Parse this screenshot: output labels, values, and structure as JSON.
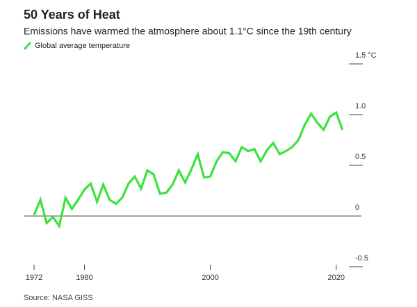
{
  "chart_data": {
    "type": "line",
    "title": "50 Years of Heat",
    "subtitle": "Emissions have warmed the atmosphere about 1.1°C since the 19th century",
    "source": "Source: NASA GISS",
    "x": [
      1972,
      1973,
      1974,
      1975,
      1976,
      1977,
      1978,
      1979,
      1980,
      1981,
      1982,
      1983,
      1984,
      1985,
      1986,
      1987,
      1988,
      1989,
      1990,
      1991,
      1992,
      1993,
      1994,
      1995,
      1996,
      1997,
      1998,
      1999,
      2000,
      2001,
      2002,
      2003,
      2004,
      2005,
      2006,
      2007,
      2008,
      2009,
      2010,
      2011,
      2012,
      2013,
      2014,
      2015,
      2016,
      2017,
      2018,
      2019,
      2020,
      2021
    ],
    "series": [
      {
        "name": "Global average temperature",
        "color": "#3de23d",
        "values": [
          0.01,
          0.16,
          -0.07,
          -0.01,
          -0.1,
          0.18,
          0.07,
          0.16,
          0.26,
          0.32,
          0.14,
          0.31,
          0.16,
          0.12,
          0.18,
          0.32,
          0.39,
          0.27,
          0.45,
          0.41,
          0.22,
          0.23,
          0.31,
          0.45,
          0.33,
          0.46,
          0.61,
          0.38,
          0.39,
          0.54,
          0.63,
          0.62,
          0.54,
          0.68,
          0.64,
          0.66,
          0.54,
          0.65,
          0.72,
          0.61,
          0.64,
          0.68,
          0.75,
          0.9,
          1.01,
          0.92,
          0.85,
          0.98,
          1.02,
          0.85
        ]
      }
    ],
    "xlim": [
      1970,
      2024
    ],
    "xticks": [
      1972,
      1980,
      2000,
      2020
    ],
    "ylim": [
      -0.5,
      1.5
    ],
    "yticks": [
      {
        "value": 1.5,
        "label": "1.5 °C"
      },
      {
        "value": 1.0,
        "label": "1.0"
      },
      0.5,
      0,
      -0.5
    ]
  }
}
